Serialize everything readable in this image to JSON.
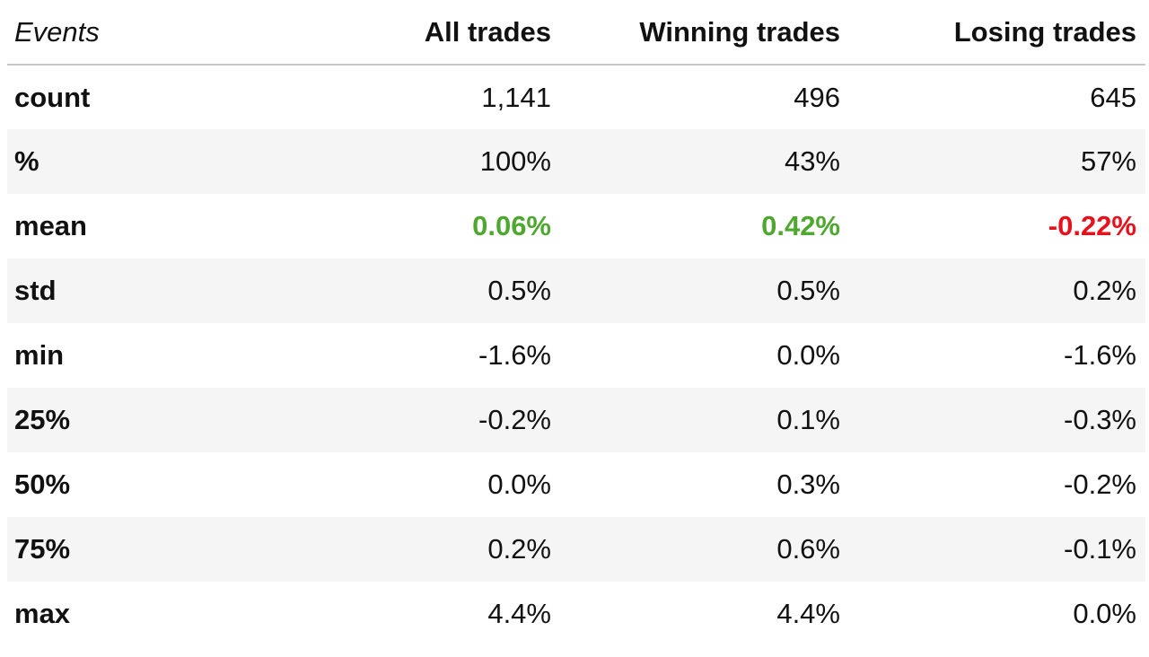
{
  "table": {
    "headers": [
      "Events",
      "All trades",
      "Winning trades",
      "Losing trades"
    ],
    "rows": [
      {
        "label": "count",
        "values": [
          "1,141",
          "496",
          "645"
        ],
        "styles": [
          "",
          "",
          ""
        ]
      },
      {
        "label": "%",
        "values": [
          "100%",
          "43%",
          "57%"
        ],
        "styles": [
          "",
          "",
          ""
        ]
      },
      {
        "label": "mean",
        "values": [
          "0.06%",
          "0.42%",
          "-0.22%"
        ],
        "styles": [
          "pos",
          "pos",
          "neg"
        ]
      },
      {
        "label": "std",
        "values": [
          "0.5%",
          "0.5%",
          "0.2%"
        ],
        "styles": [
          "",
          "",
          ""
        ]
      },
      {
        "label": "min",
        "values": [
          "-1.6%",
          "0.0%",
          "-1.6%"
        ],
        "styles": [
          "",
          "",
          ""
        ]
      },
      {
        "label": "25%",
        "values": [
          "-0.2%",
          "0.1%",
          "-0.3%"
        ],
        "styles": [
          "",
          "",
          ""
        ]
      },
      {
        "label": "50%",
        "values": [
          "0.0%",
          "0.3%",
          "-0.2%"
        ],
        "styles": [
          "",
          "",
          ""
        ]
      },
      {
        "label": "75%",
        "values": [
          "0.2%",
          "0.6%",
          "-0.1%"
        ],
        "styles": [
          "",
          "",
          ""
        ]
      },
      {
        "label": "max",
        "values": [
          "4.4%",
          "4.4%",
          "0.0%"
        ],
        "styles": [
          "",
          "",
          ""
        ]
      }
    ]
  },
  "colors": {
    "positive": "#4ea72e",
    "negative": "#e8111b",
    "stripe": "#f5f5f5",
    "header_rule": "#c8c8c8"
  }
}
